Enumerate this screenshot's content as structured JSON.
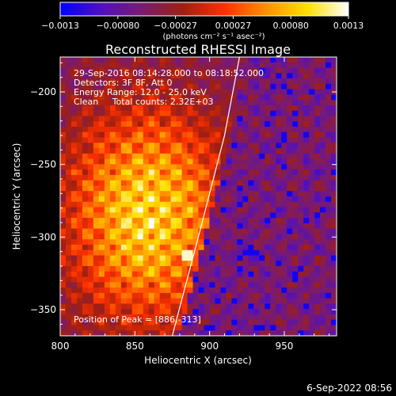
{
  "chart_data": {
    "type": "heatmap",
    "title": "Reconstructed RHESSI Image",
    "xlabel": "Heliocentric X (arcsec)",
    "ylabel": "Heliocentric Y (arcsec)",
    "xlim": [
      800,
      985
    ],
    "ylim": [
      -368,
      -176
    ],
    "x_ticks": [
      800,
      850,
      900,
      950
    ],
    "y_ticks": [
      -200,
      -250,
      -300,
      -350
    ],
    "x_tick_labels": [
      "800",
      "850",
      "900",
      "950"
    ],
    "y_tick_labels": [
      "−200",
      "−250",
      "−300",
      "−350"
    ],
    "colorbar": {
      "range": [
        -0.0013,
        0.0013
      ],
      "tick_labels": [
        "−0.0013",
        "−0.00080",
        "−0.00027",
        "0.00027",
        "0.00080",
        "0.0013"
      ],
      "unit_label": "(photons cm⁻² s⁻¹ asec⁻²)",
      "colormap": [
        "#0000ff",
        "#5010c0",
        "#7a1a70",
        "#a02010",
        "#ff3000",
        "#ff9000",
        "#ffe000",
        "#ffffff"
      ]
    },
    "info_lines": [
      "29-Sep-2016 08:14:28.000 to 08:18:52.000",
      "Detectors: 3F 8F, Att 0",
      "Energy Range: 12.0 - 25.0 keV",
      "Clean     Total counts: 2.32E+03"
    ],
    "peak_label": "Position of Peak = [886,-313]",
    "peak_position": [
      886,
      -313
    ],
    "limb_curve": [
      [
        920,
        -176
      ],
      [
        910,
        -230
      ],
      [
        895,
        -290
      ],
      [
        875,
        -368
      ]
    ],
    "grid": false
  },
  "footer": {
    "timestamp": "6-Sep-2022 08:56"
  },
  "colors": {
    "background": "#000000",
    "text": "#ffffff",
    "limb": "#ffffff"
  }
}
